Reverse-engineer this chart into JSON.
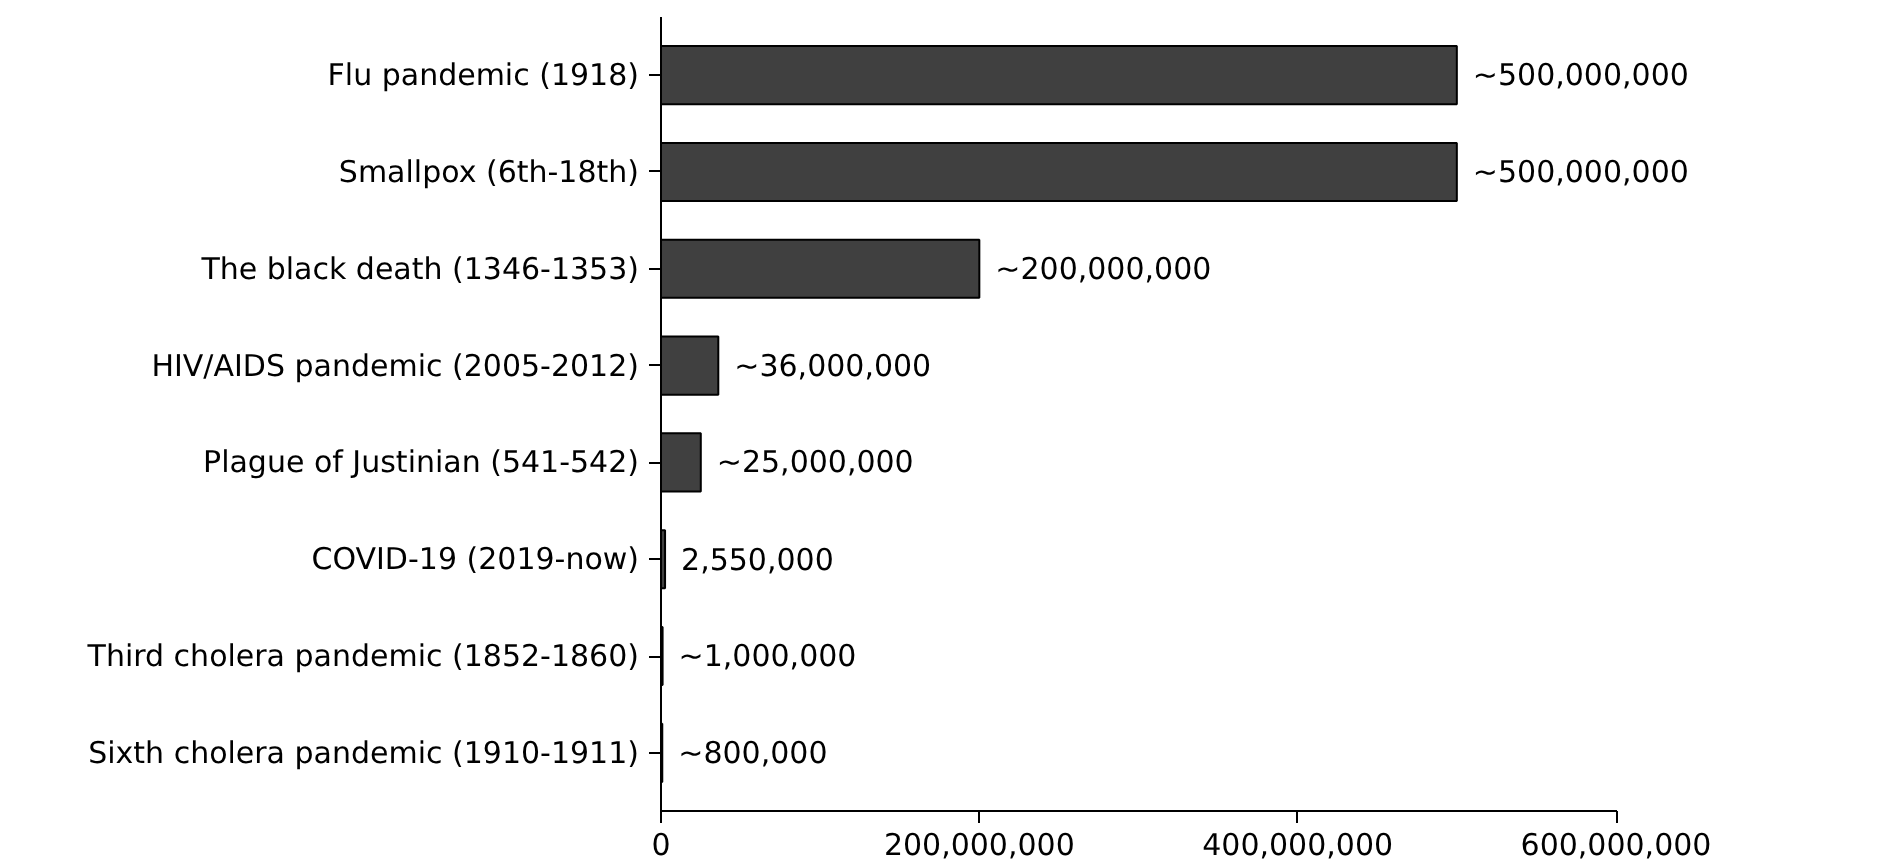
{
  "chart_data": {
    "type": "bar",
    "orientation": "horizontal",
    "categories": [
      "Flu pandemic (1918)",
      "Smallpox (6th-18th)",
      "The black death (1346-1353)",
      "HIV/AIDS pandemic (2005-2012)",
      "Plague of Justinian (541-542)",
      "COVID-19 (2019-now)",
      "Third cholera pandemic (1852-1860)",
      "Sixth cholera pandemic (1910-1911)"
    ],
    "values": [
      500000000,
      500000000,
      200000000,
      36000000,
      25000000,
      2550000,
      1000000,
      800000
    ],
    "value_labels": [
      "~500,000,000",
      "~500,000,000",
      "~200,000,000",
      "~36,000,000",
      "~25,000,000",
      "2,550,000",
      "~1,000,000",
      "~800,000"
    ],
    "color": "#404040",
    "xlim": [
      0,
      600000000
    ],
    "xticks": [
      0,
      {
        "value": 200000000,
        "label": "200,000,000"
      },
      {
        "value": 400000000,
        "label": "400,000,000"
      },
      {
        "value": 600000000,
        "label": "600,000,000"
      }
    ],
    "grid": false
  }
}
